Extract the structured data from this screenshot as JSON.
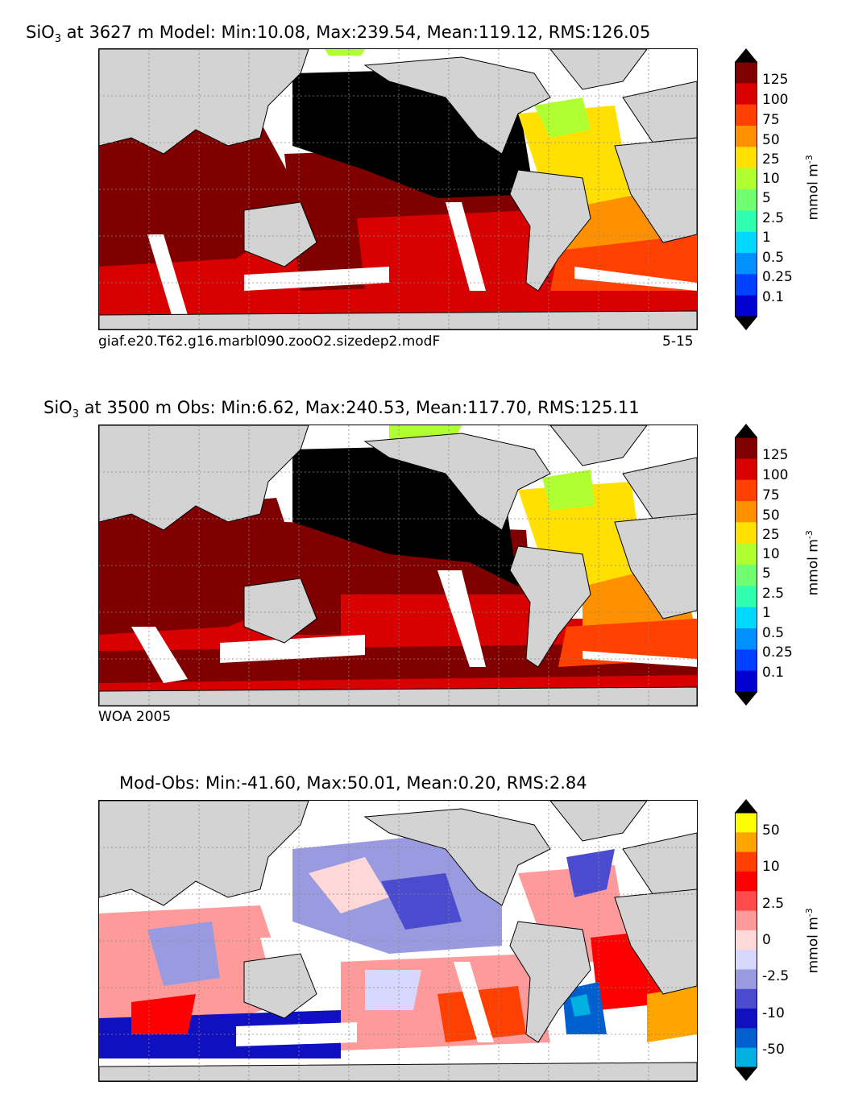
{
  "panels": [
    {
      "id": "model",
      "title_prefix": "SiO",
      "title_sub": "3",
      "title_rest": "at 3627 m Model: Min:10.08, Max:239.54, Mean:119.12, RMS:126.05",
      "caption_left": "giaf.e20.T62.g16.marbl090.zooO2.sizedep2.modF",
      "caption_right": "5-15"
    },
    {
      "id": "obs",
      "title_prefix": "SiO",
      "title_sub": "3",
      "title_rest": "at 3500 m Obs: Min:6.62, Max:240.53, Mean:117.70, RMS:125.11",
      "caption_left": "WOA 2005",
      "caption_right": ""
    },
    {
      "id": "diff",
      "title_full": "Mod-Obs: Min:-41.60, Max:50.01, Mean:0.20, RMS:2.84",
      "caption_left": "",
      "caption_right": ""
    }
  ],
  "colorbar_abs": {
    "unit": "mmol m",
    "unit_sup": "-3",
    "labels": [
      "125",
      "100",
      "75",
      "50",
      "25",
      "10",
      "5",
      "2.5",
      "1",
      "0.5",
      "0.25",
      "0.1"
    ],
    "colors": [
      "#800000",
      "#d80000",
      "#ff4000",
      "#ff9000",
      "#ffe000",
      "#b0ff30",
      "#70ff70",
      "#30ffb0",
      "#00d8ff",
      "#0090ff",
      "#0040ff",
      "#0000d0",
      "#000080"
    ]
  },
  "colorbar_diff": {
    "unit": "mmol m",
    "unit_sup": "-3",
    "labels": [
      "50",
      "10",
      "2.5",
      "0",
      "-2.5",
      "-10",
      "-50"
    ],
    "colors": [
      "#ffff00",
      "#ffa500",
      "#ff4000",
      "#ff0000",
      "#ff4b4b",
      "#ff9a9a",
      "#ffd8d8",
      "#d8d8ff",
      "#9a9ae0",
      "#4b4bd0",
      "#1010c0",
      "#0060d0",
      "#00b0e0",
      "#00ffff"
    ]
  },
  "colors": {
    "land": "#d3d3d3",
    "no_data": "#ffffff",
    "grid": "#888888"
  }
}
